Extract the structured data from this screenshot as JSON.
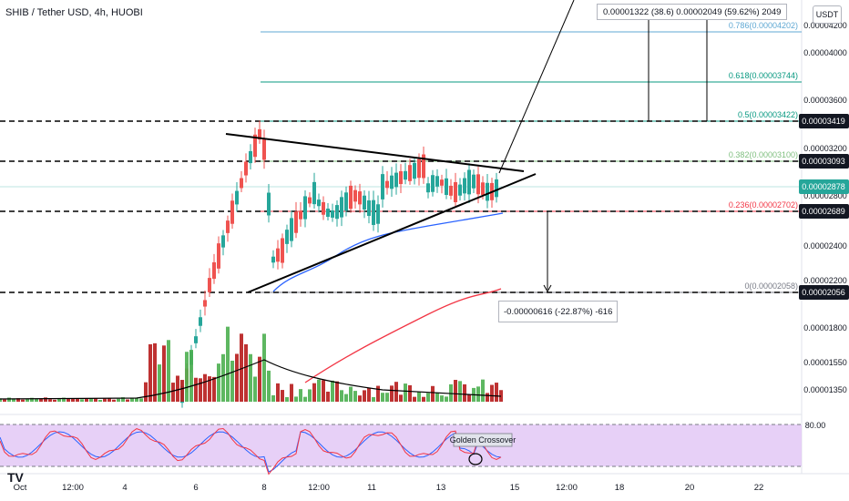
{
  "header": {
    "title": "SHIB / Tether USD, 4h, HUOBI",
    "currency": "USDT"
  },
  "colors": {
    "up": "#26a69a",
    "down": "#ef5350",
    "volUp": "#4caf50",
    "volDown": "#b71c1c",
    "ma_short": "#2962ff",
    "ma_long": "#f23645",
    "rsi_band": "#e1c4f5"
  },
  "chart_data": {
    "type": "candlestick",
    "ylim": [
      1.3e-06,
      4.4e-06
    ],
    "price_ticks": [
      "0.00004200",
      "0.00004000",
      "0.00003600",
      "0.00003200",
      "0.00002800",
      "0.00002400",
      "0.00002200",
      "0.00001800",
      "0.00001550",
      "0.00001350"
    ],
    "x_ticks": [
      "Oct",
      "12:00",
      "4",
      "6",
      "8",
      "12:00",
      "11",
      "13",
      "15",
      "12:00",
      "18",
      "20",
      "22"
    ],
    "price_labels": [
      {
        "label": "0.00003419",
        "color": "#131722"
      },
      {
        "label": "0.00003093",
        "color": "#131722"
      },
      {
        "label": "0.00002878",
        "color": "#26a69a"
      },
      {
        "label": "0.00002689",
        "color": "#131722"
      },
      {
        "label": "0.00002056",
        "color": "#131722"
      }
    ],
    "fib_levels": [
      {
        "label": "0.786(0.00004202)",
        "color": "#5fa8d3"
      },
      {
        "label": "0.618(0.00003744)",
        "color": "#089981"
      },
      {
        "label": "0.5(0.00003422)",
        "color": "#089981"
      },
      {
        "label": "0.382(0.00003100)",
        "color": "#7fbf7f"
      },
      {
        "label": "0.236(0.00002702)",
        "color": "#f23645"
      },
      {
        "label": "0(0.00002058)",
        "color": "#787b86"
      }
    ],
    "measure_up": "0.00001322 (38.6) 0.00002049 (59.62%) 2049",
    "measure_down": "-0.00000616 (-22.87%) -616",
    "rsi": {
      "level_label": "80.00",
      "annotation": "Golden Crossover"
    }
  }
}
